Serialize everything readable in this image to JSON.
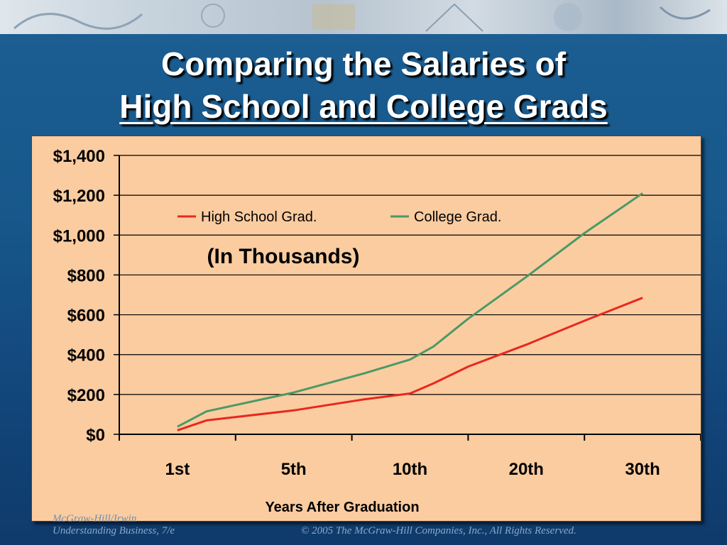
{
  "slide": {
    "title_line1": "Comparing the Salaries of",
    "title_line2": "High School and College Grads",
    "footer_left_top": "McGraw-Hill/Irwin",
    "footer_left": "Understanding Business, 7/e",
    "footer_right": "© 2005 The McGraw-Hill Companies, Inc., All Rights Reserved."
  },
  "chart_data": {
    "type": "line",
    "categories": [
      "1st",
      "5th",
      "10th",
      "20th",
      "30th"
    ],
    "x_values": [
      1,
      5,
      10,
      20,
      30
    ],
    "series": [
      {
        "name": "High School Grad.",
        "color": "#e8281e",
        "x": [
          1,
          2,
          5,
          8,
          10,
          12,
          15,
          20,
          25,
          30
        ],
        "values": [
          20,
          70,
          120,
          175,
          205,
          255,
          340,
          450,
          570,
          685
        ]
      },
      {
        "name": "College Grad.",
        "color": "#4a9a66",
        "x": [
          1,
          2,
          5,
          8,
          10,
          12,
          15,
          20,
          25,
          30
        ],
        "values": [
          38,
          115,
          210,
          305,
          375,
          440,
          580,
          790,
          1010,
          1210
        ]
      }
    ],
    "ylim": [
      0,
      1400
    ],
    "yticks": [
      0,
      200,
      400,
      600,
      800,
      1000,
      1200,
      1400
    ],
    "ytick_labels": [
      "$0",
      "$200",
      "$400",
      "$600",
      "$800",
      "$1,000",
      "$1,200",
      "$1,400"
    ],
    "xlabel": "Years After Graduation",
    "annotation": "(In Thousands)",
    "grid": true,
    "legend": "top-left"
  }
}
